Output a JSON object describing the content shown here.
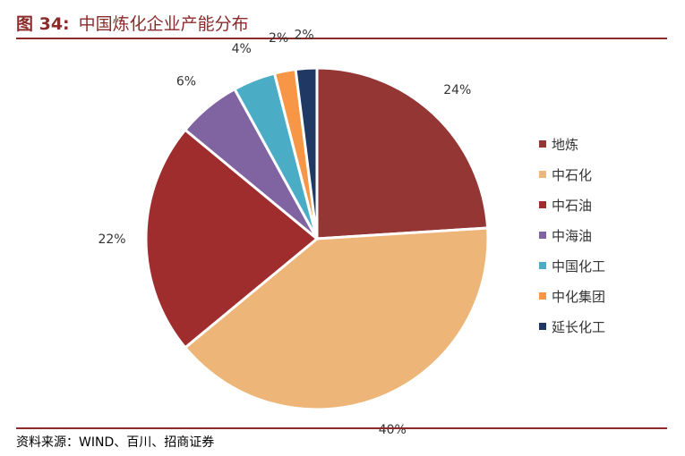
{
  "header": {
    "figure_label": "图 34:",
    "title": "中国炼化企业产能分布"
  },
  "footer": {
    "source": "资料来源：WIND、百川、招商证券"
  },
  "chart_data": {
    "type": "pie",
    "legend_position": "right",
    "labels": [
      "24%",
      "40%",
      "22%",
      "6%",
      "4%",
      "2%",
      "2%"
    ],
    "series": [
      {
        "name": "地炼",
        "value": 24,
        "color": "#943634"
      },
      {
        "name": "中石化",
        "value": 40,
        "color": "#edb577"
      },
      {
        "name": "中石油",
        "value": 22,
        "color": "#a02d2e"
      },
      {
        "name": "中海油",
        "value": 6,
        "color": "#8064a2"
      },
      {
        "name": "中国化工",
        "value": 4,
        "color": "#4bacc6"
      },
      {
        "name": "中化集团",
        "value": 2,
        "color": "#f79646"
      },
      {
        "name": "延长化工",
        "value": 2,
        "color": "#1f3864"
      }
    ]
  }
}
